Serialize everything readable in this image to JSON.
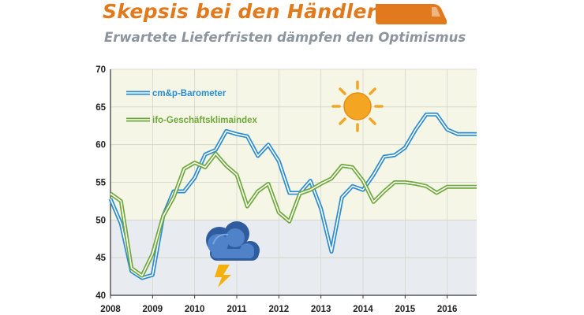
{
  "header": {
    "title": "Skepsis bei den Händlern",
    "subtitle": "Erwartete Lieferfristen dämpfen den Optimismus",
    "icon": "van-icon"
  },
  "colors": {
    "accent": "#e07a1c",
    "series_blue": "#2a8ccf",
    "series_green": "#6fa83a",
    "bg_upper": "#f5f6e6",
    "bg_lower": "#e8ebef",
    "sun": "#f4a623",
    "cloud": "#3f6db0"
  },
  "icons": {
    "weather_good": "sun-icon",
    "weather_bad": "thunderstorm-icon"
  },
  "chart_data": {
    "type": "line",
    "title": "Skepsis bei den Händlern",
    "subtitle": "Erwartete Lieferfristen dämpfen den Optimismus",
    "xlabel": "",
    "ylabel": "",
    "xlim": [
      2008,
      2016.7
    ],
    "ylim": [
      40,
      70
    ],
    "x_ticks": [
      "2008",
      "2009",
      "2010",
      "2011",
      "2012",
      "2013",
      "2014",
      "2015",
      "2016"
    ],
    "y_ticks": [
      "40",
      "45",
      "50",
      "55",
      "60",
      "65",
      "70"
    ],
    "threshold": 50,
    "legend_position": "top-left",
    "series": [
      {
        "name": "cm&p-Barometer",
        "color": "#2a8ccf",
        "x": [
          2008,
          2008.25,
          2008.5,
          2008.75,
          2009,
          2009.25,
          2009.5,
          2009.75,
          2010,
          2010.25,
          2010.5,
          2010.75,
          2011,
          2011.25,
          2011.5,
          2011.75,
          2012,
          2012.25,
          2012.5,
          2012.75,
          2013,
          2013.25,
          2013.5,
          2013.75,
          2014,
          2014.25,
          2014.5,
          2014.75,
          2015,
          2015.25,
          2015.5,
          2015.75,
          2016,
          2016.25,
          2016.5,
          2016.7
        ],
        "values": [
          52.8,
          49.5,
          43.2,
          42.3,
          42.7,
          50.5,
          53.8,
          53.8,
          55.6,
          58.7,
          59.3,
          61.8,
          61.4,
          61.1,
          58.5,
          60.0,
          57.8,
          53.6,
          53.6,
          55.2,
          51.5,
          45.8,
          53.0,
          54.5,
          54.0,
          56.0,
          58.4,
          58.6,
          59.6,
          62.0,
          64.0,
          64.0,
          62.0,
          61.4,
          61.4,
          61.4
        ]
      },
      {
        "name": "ifo-Geschäftsklimaindex",
        "color": "#6fa83a",
        "x": [
          2008,
          2008.25,
          2008.5,
          2008.75,
          2009,
          2009.25,
          2009.5,
          2009.75,
          2010,
          2010.25,
          2010.5,
          2010.75,
          2011,
          2011.25,
          2011.5,
          2011.75,
          2012,
          2012.25,
          2012.5,
          2012.75,
          2013,
          2013.25,
          2013.5,
          2013.75,
          2014,
          2014.25,
          2014.5,
          2014.75,
          2015,
          2015.25,
          2015.5,
          2015.75,
          2016,
          2016.25,
          2016.5,
          2016.7
        ],
        "values": [
          53.5,
          52.5,
          43.6,
          42.6,
          45.5,
          50.5,
          53.0,
          56.8,
          57.6,
          57.0,
          58.8,
          57.2,
          56.0,
          51.8,
          53.8,
          54.8,
          51.0,
          49.8,
          53.5,
          54.0,
          54.8,
          55.5,
          57.2,
          57.0,
          55.2,
          52.4,
          53.8,
          55.0,
          55.0,
          54.8,
          54.5,
          53.6,
          54.4,
          54.4,
          54.4,
          54.4
        ]
      }
    ]
  }
}
